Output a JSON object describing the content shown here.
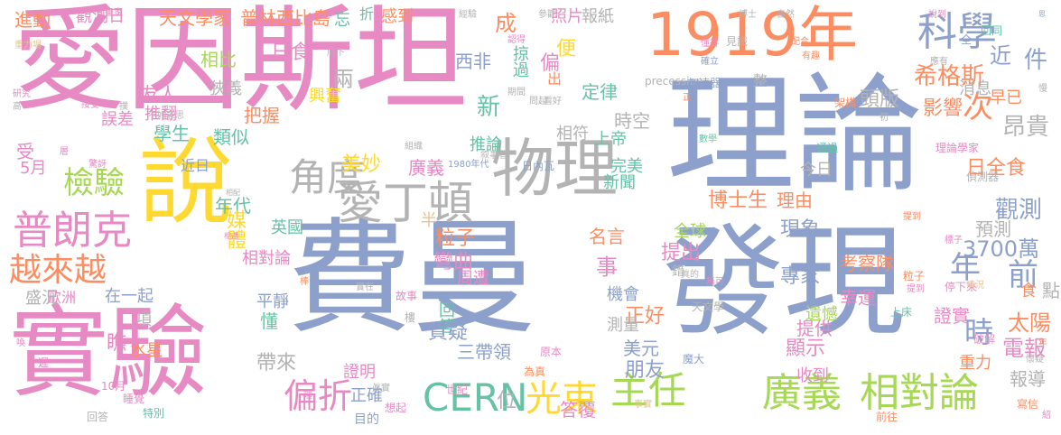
{
  "palette": {
    "pink": "#e78ac3",
    "blue": "#8da0cb",
    "orange": "#fc8d62",
    "green": "#a6d854",
    "yellow": "#ffd92f",
    "gray": "#b3b3b3",
    "teal": "#66c2a5",
    "tan": "#e5c494"
  },
  "words": [
    {
      "text": "愛因斯坦",
      "color": "pink"
    },
    {
      "text": "理論",
      "color": "blue"
    },
    {
      "text": "費曼",
      "color": "blue"
    },
    {
      "text": "發現",
      "color": "blue"
    },
    {
      "text": "說",
      "color": "yellow"
    },
    {
      "text": "實驗",
      "color": "pink"
    },
    {
      "text": "1919年",
      "color": "orange"
    },
    {
      "text": "物理",
      "color": "gray"
    },
    {
      "text": "科學",
      "color": "blue"
    },
    {
      "text": "愛丁頓",
      "color": "gray"
    },
    {
      "text": "角度",
      "color": "gray"
    },
    {
      "text": "普朗克",
      "color": "pink"
    },
    {
      "text": "越來越",
      "color": "orange"
    },
    {
      "text": "檢驗",
      "color": "green"
    },
    {
      "text": "CERN",
      "color": "teal"
    },
    {
      "text": "光束",
      "color": "yellow"
    },
    {
      "text": "偏折",
      "color": "pink"
    },
    {
      "text": "主任",
      "color": "green"
    },
    {
      "text": "廣義",
      "color": "green"
    },
    {
      "text": "相對論",
      "color": "green"
    },
    {
      "text": "希格斯",
      "color": "orange"
    },
    {
      "text": "次",
      "color": "orange"
    },
    {
      "text": "件",
      "color": "blue"
    },
    {
      "text": "昂貴",
      "color": "gray"
    },
    {
      "text": "年",
      "color": "blue"
    },
    {
      "text": "前",
      "color": "blue"
    },
    {
      "text": "時",
      "color": "blue"
    },
    {
      "text": "觀測",
      "color": "blue"
    },
    {
      "text": "日全食",
      "color": "orange"
    },
    {
      "text": "3700萬",
      "color": "blue"
    },
    {
      "text": "預測",
      "color": "gray"
    },
    {
      "text": "太陽",
      "color": "orange"
    },
    {
      "text": "電報",
      "color": "pink"
    },
    {
      "text": "點",
      "color": "gray"
    },
    {
      "text": "友人",
      "color": "pink"
    },
    {
      "text": "相比",
      "color": "green"
    },
    {
      "text": "日食",
      "color": "pink"
    },
    {
      "text": "兩",
      "color": "gray"
    },
    {
      "text": "西非",
      "color": "blue"
    },
    {
      "text": "掠過",
      "color": "teal"
    },
    {
      "text": "便",
      "color": "yellow"
    },
    {
      "text": "定律",
      "color": "teal"
    },
    {
      "text": "新",
      "color": "teal"
    },
    {
      "text": "成",
      "color": "orange"
    },
    {
      "text": "狹義",
      "color": "gray"
    },
    {
      "text": "把握",
      "color": "orange"
    },
    {
      "text": "興奮",
      "color": "yellow"
    },
    {
      "text": "推翻",
      "color": "pink"
    },
    {
      "text": "學生",
      "color": "teal"
    },
    {
      "text": "類似",
      "color": "teal"
    },
    {
      "text": "時空",
      "color": "gray"
    },
    {
      "text": "頭版",
      "color": "gray"
    },
    {
      "text": "影響",
      "color": "orange"
    },
    {
      "text": "消息",
      "color": "gray"
    },
    {
      "text": "早已",
      "color": "orange"
    },
    {
      "text": "誤差",
      "color": "pink"
    },
    {
      "text": "推論",
      "color": "teal"
    },
    {
      "text": "上帝",
      "color": "teal"
    },
    {
      "text": "相符",
      "color": "gray"
    },
    {
      "text": "美妙",
      "color": "yellow"
    },
    {
      "text": "廣義",
      "color": "pink"
    },
    {
      "text": "完美",
      "color": "teal"
    },
    {
      "text": "新聞",
      "color": "teal"
    },
    {
      "text": "博士生",
      "color": "orange"
    },
    {
      "text": "理由",
      "color": "orange"
    },
    {
      "text": "今日",
      "color": "gray"
    },
    {
      "text": "年代",
      "color": "teal"
    },
    {
      "text": "半",
      "color": "tan"
    },
    {
      "text": "粒子",
      "color": "orange"
    },
    {
      "text": "彎曲",
      "color": "pink"
    },
    {
      "text": "事",
      "color": "pink"
    },
    {
      "text": "名言",
      "color": "orange"
    },
    {
      "text": "全球",
      "color": "green"
    },
    {
      "text": "現象",
      "color": "blue"
    },
    {
      "text": "提出",
      "color": "pink"
    },
    {
      "text": "專家",
      "color": "blue"
    },
    {
      "text": "考察隊",
      "color": "orange"
    },
    {
      "text": "幸運",
      "color": "pink"
    },
    {
      "text": "媒體",
      "color": "yellow"
    },
    {
      "text": "英國",
      "color": "teal"
    },
    {
      "text": "相對論",
      "color": "pink"
    },
    {
      "text": "盛況",
      "color": "gray"
    },
    {
      "text": "歐洲",
      "color": "pink"
    },
    {
      "text": "在一起",
      "color": "blue"
    },
    {
      "text": "平靜",
      "color": "blue"
    },
    {
      "text": "懂",
      "color": "teal"
    },
    {
      "text": "回答",
      "color": "teal"
    },
    {
      "text": "質疑",
      "color": "blue"
    },
    {
      "text": "正好",
      "color": "orange"
    },
    {
      "text": "美元",
      "color": "blue"
    },
    {
      "text": "三帶領",
      "color": "blue"
    },
    {
      "text": "朋友",
      "color": "blue"
    },
    {
      "text": "帶來",
      "color": "gray"
    },
    {
      "text": "機會",
      "color": "blue"
    },
    {
      "text": "測量",
      "color": "gray"
    },
    {
      "text": "周遭",
      "color": "pink"
    },
    {
      "text": "顯示",
      "color": "pink"
    },
    {
      "text": "提供",
      "color": "pink"
    },
    {
      "text": "遺憾",
      "color": "green"
    },
    {
      "text": "證實",
      "color": "pink"
    },
    {
      "text": "收到",
      "color": "pink"
    },
    {
      "text": "證明",
      "color": "pink"
    },
    {
      "text": "正確",
      "color": "blue"
    },
    {
      "text": "位",
      "color": "gray"
    },
    {
      "text": "答覆",
      "color": "pink"
    },
    {
      "text": "重力",
      "color": "orange"
    },
    {
      "text": "水星",
      "color": "orange"
    },
    {
      "text": "瞧",
      "color": "pink"
    },
    {
      "text": "項",
      "color": "gray"
    },
    {
      "text": "受",
      "color": "pink"
    },
    {
      "text": "5月",
      "color": "pink"
    },
    {
      "text": "近日",
      "color": "blue"
    },
    {
      "text": "天文學家",
      "color": "orange"
    },
    {
      "text": "普林西比島",
      "color": "orange"
    },
    {
      "text": "觀測日",
      "color": "pink"
    },
    {
      "text": "進動",
      "color": "orange"
    },
    {
      "text": "忘",
      "color": "teal"
    },
    {
      "text": "折",
      "color": "teal"
    },
    {
      "text": "感到",
      "color": "orange"
    },
    {
      "text": "照片",
      "color": "pink"
    },
    {
      "text": "報紙",
      "color": "gray"
    },
    {
      "text": "近",
      "color": "blue"
    },
    {
      "text": "報導",
      "color": "gray"
    },
    {
      "text": "目的",
      "color": "blue"
    },
    {
      "text": "1980年代",
      "color": "blue"
    },
    {
      "text": "日內瓦",
      "color": "blue"
    },
    {
      "text": "precession",
      "color": "gray"
    },
    {
      "text": "數學",
      "color": "teal"
    },
    {
      "text": "理論學家",
      "color": "pink"
    },
    {
      "text": "偵測器",
      "color": "gray"
    },
    {
      "text": "上床",
      "color": "teal"
    },
    {
      "text": "停下來",
      "color": "pink"
    },
    {
      "text": "情況",
      "color": "tan"
    },
    {
      "text": "破解",
      "color": "pink"
    },
    {
      "text": "前往",
      "color": "orange"
    },
    {
      "text": "寫信",
      "color": "orange"
    },
    {
      "text": "特別",
      "color": "teal"
    },
    {
      "text": "睡覺",
      "color": "pink"
    },
    {
      "text": "10月",
      "color": "pink"
    },
    {
      "text": "回答",
      "color": "gray"
    },
    {
      "text": "事實",
      "color": "tan"
    },
    {
      "text": "想起",
      "color": "pink"
    },
    {
      "text": "為真",
      "color": "orange"
    },
    {
      "text": "世紀",
      "color": "pink"
    },
    {
      "text": "原本",
      "color": "pink"
    },
    {
      "text": "魔大",
      "color": "blue"
    },
    {
      "text": "故事",
      "color": "pink"
    },
    {
      "text": "樓",
      "color": "gray"
    },
    {
      "text": "天文學",
      "color": "gray"
    },
    {
      "text": "眞的",
      "color": "gray"
    },
    {
      "text": "錯",
      "color": "gray"
    },
    {
      "text": "無可",
      "color": "pink"
    },
    {
      "text": "粒子",
      "color": "orange"
    },
    {
      "text": "提到",
      "color": "orange"
    },
    {
      "text": "通過",
      "color": "teal"
    },
    {
      "text": "架構",
      "color": "orange"
    },
    {
      "text": "整",
      "color": "gray"
    },
    {
      "text": "加速器",
      "color": "blue"
    },
    {
      "text": "見識",
      "color": "gray"
    },
    {
      "text": "自然",
      "color": "gray"
    },
    {
      "text": "博士",
      "color": "gray"
    },
    {
      "text": "經驗",
      "color": "gray"
    },
    {
      "text": "參觀",
      "color": "gray"
    },
    {
      "text": "畫家",
      "color": "pink"
    },
    {
      "text": "重力場",
      "color": "tan"
    },
    {
      "text": "研究",
      "color": "pink"
    },
    {
      "text": "接受",
      "color": "pink"
    },
    {
      "text": "高",
      "color": "gray"
    },
    {
      "text": "不好意思",
      "color": "gray"
    },
    {
      "text": "層",
      "color": "pink"
    },
    {
      "text": "驚訝",
      "color": "pink"
    },
    {
      "text": "相配",
      "color": "gray"
    },
    {
      "text": "叙事者",
      "color": "gray"
    },
    {
      "text": "組織",
      "color": "gray"
    },
    {
      "text": "有趣",
      "color": "orange"
    },
    {
      "text": "配合",
      "color": "orange"
    },
    {
      "text": "說到",
      "color": "pink"
    },
    {
      "text": "確立",
      "color": "blue"
    },
    {
      "text": "懂得",
      "color": "pink"
    },
    {
      "text": "應有",
      "color": "gray"
    },
    {
      "text": "全",
      "color": "blue"
    },
    {
      "text": "認得",
      "color": "pink"
    },
    {
      "text": "期間",
      "color": "gray"
    },
    {
      "text": "看好",
      "color": "gray"
    },
    {
      "text": "問起",
      "color": "gray"
    },
    {
      "text": "初",
      "color": "gray"
    },
    {
      "text": "年",
      "color": "orange"
    },
    {
      "text": "喚",
      "color": "pink"
    },
    {
      "text": "底下",
      "color": "gray"
    },
    {
      "text": "棒",
      "color": "orange"
    },
    {
      "text": "實在",
      "color": "gray"
    },
    {
      "text": "相遇",
      "color": "pink"
    },
    {
      "text": "懷疑",
      "color": "gray"
    },
    {
      "text": "眞實",
      "color": "gray"
    },
    {
      "text": "偏",
      "color": "pink"
    },
    {
      "text": "回同",
      "color": "teal"
    },
    {
      "text": "慢",
      "color": "gray"
    },
    {
      "text": "思",
      "color": "blue"
    },
    {
      "text": "正",
      "color": "orange"
    },
    {
      "text": "出",
      "color": "orange"
    },
    {
      "text": "食",
      "color": "orange"
    },
    {
      "text": "提到",
      "color": "pink"
    },
    {
      "text": "暱",
      "color": "pink"
    },
    {
      "text": "紹",
      "color": "pink"
    },
    {
      "text": "標子",
      "color": "pink"
    },
    {
      "text": "遲",
      "color": "pink"
    },
    {
      "text": "撲",
      "color": "gray"
    }
  ]
}
